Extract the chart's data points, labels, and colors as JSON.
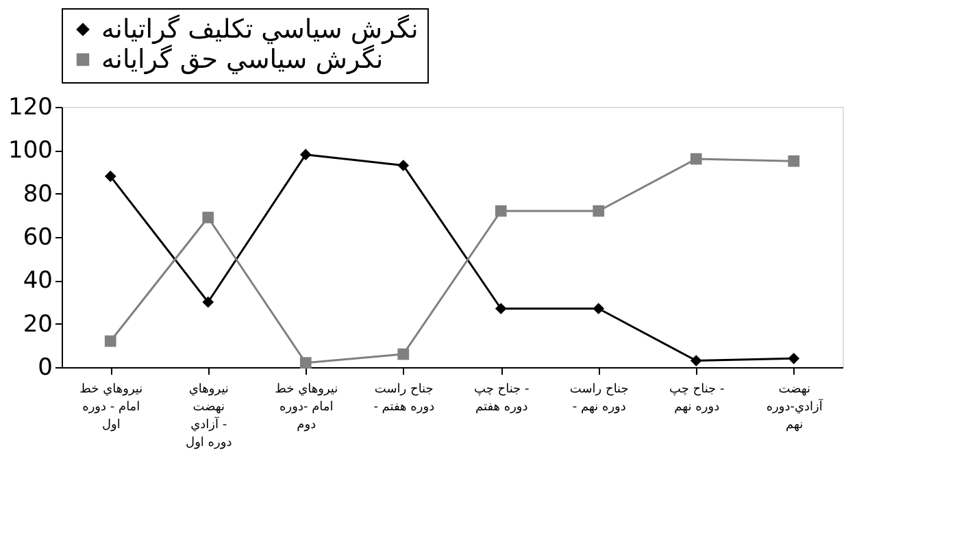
{
  "chart_data": {
    "type": "line",
    "categories": [
      "نيروهاي خط\nامام - دوره\nاول",
      "نيروهاي\nنهضت\nآزادي -\nدوره اول",
      "نيروهاي خط\nامام -دوره\nدوم",
      "جناح راست\n- دوره هفتم",
      "جناح چپ -\nدوره هفتم",
      "جناح راست\n- دوره نهم",
      "جناح چپ -\nدوره نهم",
      "نهضت\nآزادي-دوره\nنهم"
    ],
    "series": [
      {
        "name": "نگرش سياسي تكليف گراتيانه",
        "color": "#000000",
        "marker": "diamond",
        "values": [
          88,
          30,
          98,
          93,
          27,
          27,
          3,
          4
        ]
      },
      {
        "name": "نگرش سياسي حق گرايانه",
        "color": "#808080",
        "marker": "square",
        "values": [
          12,
          69,
          2,
          6,
          72,
          72,
          96,
          95
        ]
      }
    ],
    "ylim": [
      0,
      120
    ],
    "yticks": [
      0,
      20,
      40,
      60,
      80,
      100,
      120
    ],
    "grid": false,
    "legend": "top",
    "line_style": "solid"
  }
}
